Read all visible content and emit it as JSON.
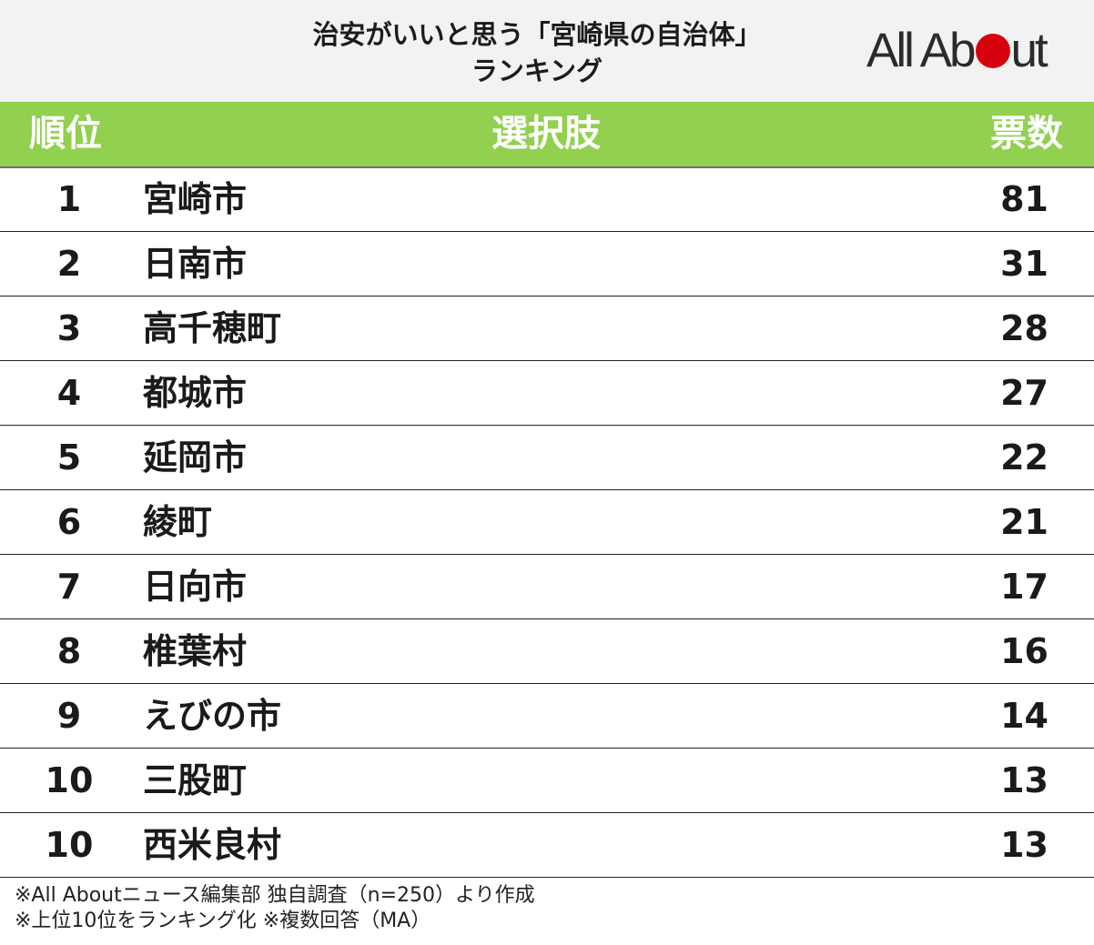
{
  "title": {
    "line1": "治安がいいと思う「宮崎県の自治体」",
    "line2": "ランキング"
  },
  "logo": {
    "text_before": "All Ab",
    "text_after": "ut"
  },
  "colors": {
    "header_bar": "#92d050",
    "logo_dot": "#d7000f"
  },
  "table": {
    "headers": {
      "rank": "順位",
      "choice": "選択肢",
      "votes": "票数"
    }
  },
  "chart_data": {
    "type": "table",
    "title": "治安がいいと思う「宮崎県の自治体」ランキング",
    "columns": [
      "順位",
      "選択肢",
      "票数"
    ],
    "rows": [
      {
        "rank": "1",
        "name": "宮崎市",
        "votes": "81"
      },
      {
        "rank": "2",
        "name": "日南市",
        "votes": "31"
      },
      {
        "rank": "3",
        "name": "高千穂町",
        "votes": "28"
      },
      {
        "rank": "4",
        "name": "都城市",
        "votes": "27"
      },
      {
        "rank": "5",
        "name": "延岡市",
        "votes": "22"
      },
      {
        "rank": "6",
        "name": "綾町",
        "votes": "21"
      },
      {
        "rank": "7",
        "name": "日向市",
        "votes": "17"
      },
      {
        "rank": "8",
        "name": "椎葉村",
        "votes": "16"
      },
      {
        "rank": "9",
        "name": "えびの市",
        "votes": "14"
      },
      {
        "rank": "10",
        "name": "三股町",
        "votes": "13"
      },
      {
        "rank": "10",
        "name": "西米良村",
        "votes": "13"
      }
    ]
  },
  "footer": {
    "note1": "※All Aboutニュース編集部 独自調査（n=250）より作成",
    "note2": "※上位10位をランキング化 ※複数回答（MA）"
  }
}
